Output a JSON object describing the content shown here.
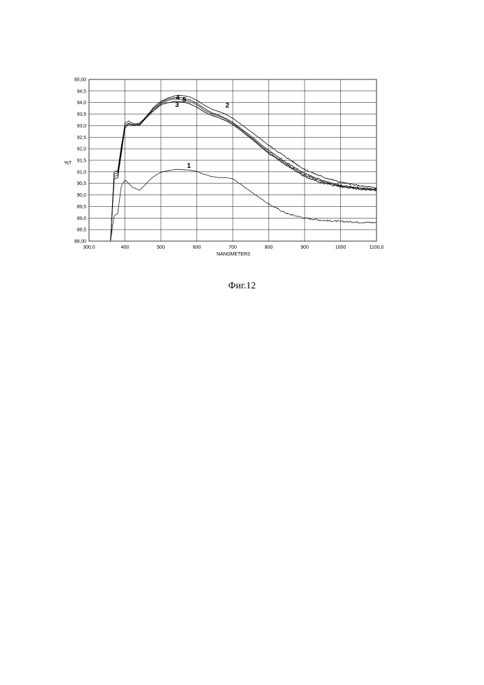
{
  "chart_data": {
    "type": "line",
    "xlabel": "NANOMETERS",
    "ylabel": "%T",
    "xlim": [
      300,
      1100
    ],
    "ylim": [
      88,
      95
    ],
    "x_tick_labels": [
      "300,0",
      "400",
      "500",
      "600",
      "700",
      "800",
      "900",
      "1000",
      "1100,0"
    ],
    "y_tick_labels": [
      "88,00",
      "88,5",
      "89,0",
      "89,5",
      "90,0",
      "90,5",
      "91,0",
      "91,5",
      "92,0",
      "92,5",
      "93,0",
      "93,5",
      "94,0",
      "94,5",
      "95,00"
    ],
    "grid": true,
    "series": [
      {
        "name": "1",
        "x": [
          360,
          370,
          380,
          390,
          400,
          410,
          420,
          440,
          460,
          480,
          500,
          520,
          540,
          560,
          580,
          600,
          620,
          640,
          660,
          680,
          700,
          750,
          800,
          850,
          900,
          950,
          1000,
          1050,
          1100
        ],
        "y": [
          88.0,
          89.1,
          89.2,
          90.4,
          90.65,
          90.5,
          90.35,
          90.2,
          90.5,
          90.8,
          90.98,
          91.05,
          91.1,
          91.1,
          91.08,
          91.02,
          90.9,
          90.8,
          90.75,
          90.75,
          90.7,
          90.15,
          89.6,
          89.2,
          89.0,
          88.9,
          88.85,
          88.82,
          88.8
        ]
      },
      {
        "name": "2",
        "x": [
          360,
          370,
          380,
          390,
          400,
          410,
          420,
          440,
          460,
          480,
          500,
          520,
          540,
          560,
          580,
          600,
          620,
          640,
          660,
          680,
          700,
          750,
          800,
          850,
          900,
          950,
          1000,
          1050,
          1100
        ],
        "y": [
          88.0,
          91.0,
          91.05,
          92.1,
          93.0,
          93.1,
          93.05,
          93.1,
          93.4,
          93.8,
          94.05,
          94.2,
          94.3,
          94.3,
          94.25,
          94.1,
          93.9,
          93.72,
          93.62,
          93.5,
          93.32,
          92.75,
          92.15,
          91.62,
          91.1,
          90.78,
          90.55,
          90.4,
          90.3
        ]
      },
      {
        "name": "3",
        "x": [
          360,
          370,
          380,
          390,
          400,
          410,
          420,
          440,
          460,
          480,
          500,
          520,
          540,
          560,
          580,
          600,
          620,
          640,
          660,
          680,
          700,
          750,
          800,
          850,
          900,
          950,
          1000,
          1050,
          1100
        ],
        "y": [
          88.0,
          90.7,
          90.75,
          91.8,
          92.9,
          93.05,
          93.0,
          93.0,
          93.35,
          93.65,
          93.9,
          94.0,
          94.05,
          94.02,
          93.95,
          93.8,
          93.6,
          93.45,
          93.35,
          93.22,
          93.05,
          92.45,
          91.8,
          91.28,
          90.8,
          90.52,
          90.35,
          90.25,
          90.2
        ]
      },
      {
        "name": "4",
        "x": [
          360,
          370,
          380,
          390,
          400,
          410,
          420,
          440,
          460,
          480,
          500,
          520,
          540,
          560,
          580,
          600,
          620,
          640,
          660,
          680,
          700,
          750,
          800,
          850,
          900,
          950,
          1000,
          1050,
          1100
        ],
        "y": [
          88.0,
          90.9,
          90.95,
          92.0,
          93.1,
          93.2,
          93.1,
          93.05,
          93.42,
          93.75,
          94.0,
          94.15,
          94.22,
          94.2,
          94.12,
          93.97,
          93.75,
          93.57,
          93.46,
          93.32,
          93.15,
          92.55,
          91.92,
          91.4,
          90.92,
          90.62,
          90.42,
          90.3,
          90.25
        ]
      },
      {
        "name": "5",
        "x": [
          360,
          370,
          380,
          390,
          400,
          410,
          420,
          440,
          460,
          480,
          500,
          520,
          540,
          560,
          580,
          600,
          620,
          640,
          660,
          680,
          700,
          750,
          800,
          850,
          900,
          950,
          1000,
          1050,
          1100
        ],
        "y": [
          88.0,
          90.8,
          90.85,
          91.9,
          93.0,
          93.1,
          93.05,
          93.05,
          93.38,
          93.7,
          93.95,
          94.1,
          94.15,
          94.12,
          94.05,
          93.9,
          93.68,
          93.52,
          93.42,
          93.28,
          93.1,
          92.5,
          91.85,
          91.33,
          90.86,
          90.57,
          90.38,
          90.28,
          90.22
        ]
      }
    ],
    "labels": [
      {
        "text": "1",
        "x": 578,
        "y": 91.18
      },
      {
        "text": "2",
        "x": 685,
        "y": 93.78
      },
      {
        "text": "3",
        "x": 545,
        "y": 93.82
      },
      {
        "text": "4",
        "x": 547,
        "y": 94.12
      },
      {
        "text": "5",
        "x": 565,
        "y": 94.02
      }
    ]
  },
  "caption": "Фиг.12"
}
